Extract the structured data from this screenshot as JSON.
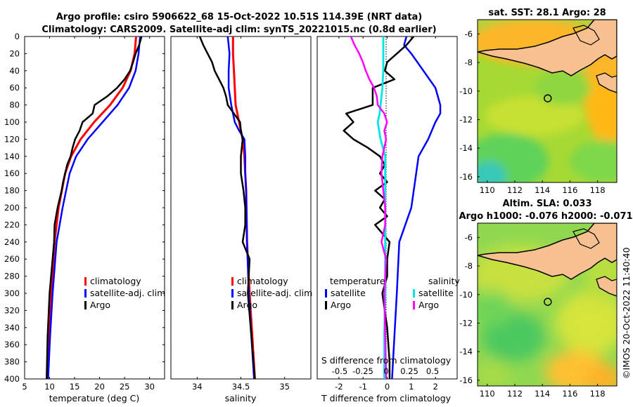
{
  "header": {
    "title_line1": "Argo profile: csiro 5906622_68 15-Oct-2022 10.51S 114.39E (NRT data)",
    "title_line2": "Climatology: CARS2009. Satellite-adj clim: synTS_20221015.nc (0.8d earlier)"
  },
  "watermark": "©IMOS 20-Oct-2022 11:40:40",
  "colors": {
    "climatology": "#ff0000",
    "satellite": "#0000ff",
    "argo": "#000000",
    "sal_satellite": "#00e5e5",
    "sal_argo": "#ff00ff"
  },
  "chart_data": [
    {
      "type": "line",
      "name": "temperature-profile",
      "xlabel": "temperature (deg C)",
      "ylabel": "",
      "xlim": [
        5,
        33
      ],
      "ylim": [
        400,
        0
      ],
      "xticks": [
        "5",
        "10",
        "15",
        "20",
        "25",
        "30"
      ],
      "yticks": [
        "0",
        "20",
        "40",
        "60",
        "80",
        "100",
        "120",
        "140",
        "160",
        "180",
        "200",
        "220",
        "240",
        "260",
        "280",
        "300",
        "320",
        "340",
        "360",
        "380",
        "400"
      ],
      "legend": [
        "climatology",
        "satellite-adj. clim",
        "Argo"
      ],
      "series": [
        {
          "name": "climatology",
          "depth": [
            0,
            20,
            40,
            60,
            80,
            100,
            120,
            140,
            160,
            200,
            240,
            300,
            350,
            400
          ],
          "values": [
            27.3,
            27.0,
            26.2,
            24.6,
            22.1,
            18.9,
            16.2,
            14.3,
            13.1,
            11.8,
            11.0,
            10.3,
            9.9,
            9.6
          ]
        },
        {
          "name": "satellite-adj. clim",
          "depth": [
            0,
            20,
            40,
            60,
            80,
            100,
            120,
            140,
            160,
            200,
            240,
            300,
            350,
            400
          ],
          "values": [
            28.1,
            27.8,
            27.2,
            25.9,
            23.6,
            20.6,
            17.6,
            15.3,
            14.0,
            12.6,
            11.4,
            10.6,
            10.1,
            9.7
          ]
        },
        {
          "name": "Argo",
          "depth": [
            0,
            10,
            20,
            30,
            40,
            50,
            60,
            70,
            80,
            90,
            100,
            110,
            120,
            130,
            140,
            150,
            160,
            170,
            180,
            200,
            220,
            240,
            260,
            300,
            350,
            400
          ],
          "values": [
            28.4,
            27.9,
            27.2,
            26.7,
            26.1,
            25.0,
            23.5,
            21.5,
            19.0,
            18.6,
            16.6,
            16.0,
            15.1,
            14.6,
            14.2,
            13.5,
            13.1,
            12.7,
            12.4,
            11.6,
            11.0,
            10.9,
            10.6,
            10.0,
            9.6,
            9.4
          ]
        }
      ]
    },
    {
      "type": "line",
      "name": "salinity-profile",
      "xlabel": "salinity",
      "xlim": [
        33.7,
        35.3
      ],
      "ylim": [
        400,
        0
      ],
      "xticks": [
        "34",
        "34.5",
        "35"
      ],
      "legend": [
        "climatology",
        "satellite-adj. clim",
        "Argo"
      ],
      "series": [
        {
          "name": "climatology",
          "depth": [
            0,
            20,
            40,
            60,
            80,
            100,
            120,
            140,
            160,
            180,
            240,
            300,
            350,
            400
          ],
          "values": [
            34.41,
            34.41,
            34.42,
            34.43,
            34.44,
            34.48,
            34.52,
            34.54,
            34.55,
            34.56,
            34.57,
            34.6,
            34.63,
            34.66
          ]
        },
        {
          "name": "satellite-adj. clim",
          "depth": [
            0,
            10,
            20,
            40,
            60,
            80,
            100,
            110,
            120,
            140,
            160,
            180,
            240,
            300,
            350,
            400
          ],
          "values": [
            34.35,
            34.36,
            34.37,
            34.36,
            34.36,
            34.39,
            34.43,
            34.48,
            34.54,
            34.55,
            34.55,
            34.56,
            34.57,
            34.59,
            34.62,
            34.65
          ]
        },
        {
          "name": "Argo",
          "depth": [
            0,
            10,
            20,
            30,
            40,
            50,
            60,
            70,
            80,
            90,
            100,
            110,
            120,
            140,
            160,
            180,
            200,
            220,
            240,
            260,
            300,
            350,
            400
          ],
          "values": [
            34.03,
            34.07,
            34.12,
            34.17,
            34.2,
            34.25,
            34.3,
            34.33,
            34.35,
            34.42,
            34.49,
            34.5,
            34.52,
            34.5,
            34.5,
            34.53,
            34.55,
            34.55,
            34.52,
            34.6,
            34.58,
            34.62,
            34.66
          ]
        }
      ]
    },
    {
      "type": "line",
      "name": "difference-profile",
      "xlabel": "T difference from climatology",
      "top_axis_label": "S difference from climatology",
      "xlim": [
        -2.9,
        2.9
      ],
      "ylim": [
        400,
        0
      ],
      "xticks": [
        "-2",
        "-1",
        "0",
        "1",
        "2"
      ],
      "top_ticks": [
        "-0.5",
        "-0.25",
        "0",
        "0.25",
        "0.5"
      ],
      "legend_titles": [
        "temperature",
        "salinity"
      ],
      "legend": [
        "satellite",
        "Argo",
        "satellite",
        "Argo"
      ],
      "series": [
        {
          "name": "temperature satellite",
          "depth": [
            0,
            10,
            20,
            40,
            60,
            80,
            90,
            100,
            120,
            140,
            160,
            200,
            240,
            300,
            350,
            400
          ],
          "values": [
            0.8,
            0.7,
            1.0,
            1.5,
            2.0,
            2.2,
            2.2,
            2.0,
            1.7,
            1.3,
            1.2,
            1.0,
            0.5,
            0.4,
            0.3,
            0.2
          ]
        },
        {
          "name": "temperature Argo",
          "depth": [
            0,
            10,
            20,
            30,
            40,
            50,
            60,
            70,
            80,
            90,
            100,
            110,
            120,
            130,
            140,
            150,
            160,
            170,
            180,
            190,
            200,
            210,
            220,
            240,
            260,
            280,
            300,
            340,
            380,
            400
          ],
          "values": [
            1.1,
            0.8,
            0.4,
            0.0,
            -0.1,
            0.3,
            -0.6,
            -0.6,
            -0.6,
            -1.7,
            -1.4,
            -1.8,
            -1.4,
            -0.8,
            -0.3,
            -0.1,
            -0.3,
            0.0,
            -0.5,
            -0.1,
            -0.3,
            0.0,
            -0.5,
            0.1,
            0.0,
            0.0,
            -0.2,
            0.0,
            0.1,
            0.1
          ]
        },
        {
          "name": "salinity satellite",
          "depth": [
            0,
            20,
            40,
            60,
            80,
            90,
            100,
            120,
            140,
            160,
            200,
            260,
            300,
            350,
            400
          ],
          "values": [
            -0.03,
            -0.03,
            -0.03,
            -0.04,
            -0.06,
            -0.07,
            -0.09,
            -0.06,
            -0.01,
            -0.01,
            -0.01,
            -0.01,
            -0.01,
            -0.02,
            -0.02
          ]
        },
        {
          "name": "salinity Argo",
          "depth": [
            0,
            10,
            20,
            30,
            40,
            50,
            60,
            70,
            80,
            90,
            100,
            110,
            120,
            140,
            160,
            180,
            200,
            220,
            240,
            260,
            300,
            350,
            400
          ],
          "values": [
            -0.38,
            -0.34,
            -0.29,
            -0.25,
            -0.22,
            -0.18,
            -0.13,
            -0.1,
            -0.09,
            -0.02,
            0.01,
            -0.02,
            0.0,
            -0.04,
            -0.05,
            -0.03,
            -0.01,
            -0.01,
            -0.05,
            0.0,
            -0.02,
            -0.01,
            0.0
          ]
        }
      ]
    },
    {
      "type": "heatmap",
      "name": "sst-map",
      "title": "sat. SST: 28.1 Argo: 28",
      "xticks": [
        "110",
        "112",
        "114",
        "116",
        "118"
      ],
      "yticks": [
        "-6",
        "-8",
        "-10",
        "-12",
        "-14",
        "-16"
      ],
      "argo_position": {
        "lon": 114.39,
        "lat": -10.51
      }
    },
    {
      "type": "heatmap",
      "name": "sla-map",
      "title_line1": "Altim. SLA: 0.033",
      "title_line2": "Argo h1000: -0.076 h2000: -0.071",
      "xticks": [
        "110",
        "112",
        "114",
        "116",
        "118"
      ],
      "yticks": [
        "-6",
        "-8",
        "-10",
        "-12",
        "-14",
        "-16"
      ],
      "argo_position": {
        "lon": 114.39,
        "lat": -10.51
      }
    }
  ]
}
